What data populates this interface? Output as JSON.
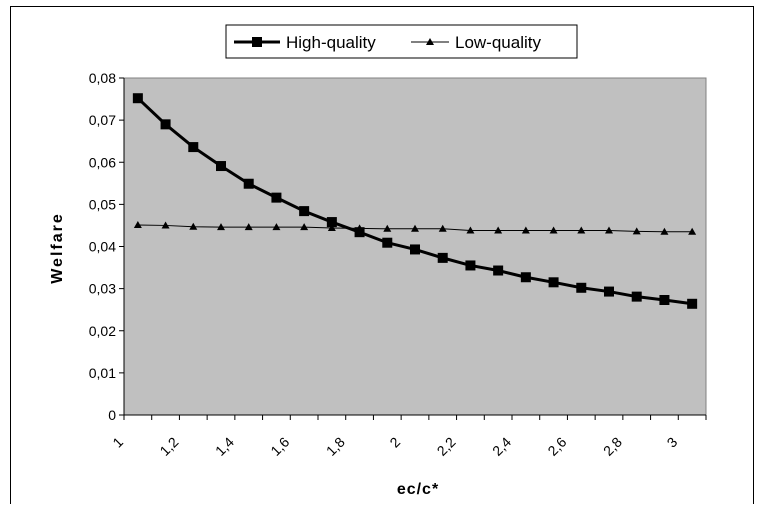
{
  "chart_data": {
    "type": "line",
    "title": "",
    "xlabel": "ec/c*",
    "ylabel": "Welfare",
    "xlim": [
      1,
      3.1
    ],
    "ylim": [
      0,
      0.08
    ],
    "x_ticks": [
      "1",
      "1,2",
      "1,4",
      "1,6",
      "1,8",
      "2",
      "2,2",
      "2,4",
      "2,6",
      "2,8",
      "3"
    ],
    "y_ticks": [
      "0",
      "0,01",
      "0,02",
      "0,03",
      "0,04",
      "0,05",
      "0,06",
      "0,07",
      "0,08"
    ],
    "x": [
      1.05,
      1.15,
      1.25,
      1.35,
      1.45,
      1.55,
      1.65,
      1.75,
      1.85,
      1.95,
      2.05,
      2.15,
      2.25,
      2.35,
      2.45,
      2.55,
      2.65,
      2.75,
      2.85,
      2.95,
      3.05
    ],
    "series": [
      {
        "name": "High-quality",
        "marker": "square",
        "color": "#000000",
        "values": [
          0.0752,
          0.069,
          0.0636,
          0.0591,
          0.0549,
          0.0516,
          0.0484,
          0.0458,
          0.0434,
          0.0409,
          0.0393,
          0.0373,
          0.0355,
          0.0343,
          0.0327,
          0.0315,
          0.0302,
          0.0293,
          0.0281,
          0.0273,
          0.0264
        ]
      },
      {
        "name": "Low-quality",
        "marker": "triangle",
        "color": "#000000",
        "values": [
          0.0451,
          0.045,
          0.0447,
          0.0446,
          0.0446,
          0.0446,
          0.0446,
          0.0444,
          0.0443,
          0.0442,
          0.0442,
          0.0442,
          0.0438,
          0.0438,
          0.0438,
          0.0438,
          0.0438,
          0.0438,
          0.0436,
          0.0435,
          0.0435
        ]
      }
    ],
    "grid": false,
    "legend_position": "top-center",
    "plot_background": "#c0c0c0"
  }
}
